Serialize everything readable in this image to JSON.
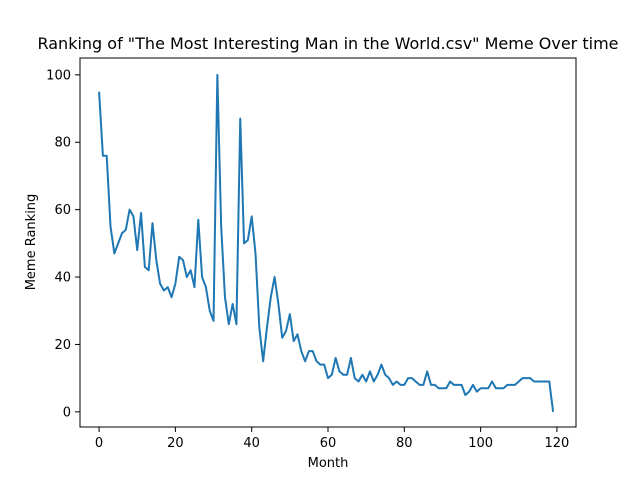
{
  "chart_data": {
    "type": "line",
    "title": "Ranking of \"The Most Interesting Man in the World.csv\" Meme Over time",
    "xlabel": "Month",
    "ylabel": "Meme Ranking",
    "xlim": [
      -5,
      125
    ],
    "ylim": [
      -4.5,
      105
    ],
    "xticks": [
      0,
      20,
      40,
      60,
      80,
      100,
      120
    ],
    "yticks": [
      0,
      20,
      40,
      60,
      80,
      100
    ],
    "grid": false,
    "line_color": "#1f77b4",
    "series": [
      {
        "x": [
          0,
          1,
          2,
          3,
          4,
          5,
          6,
          7,
          8,
          9,
          10,
          11,
          12,
          13,
          14,
          15,
          16,
          17,
          18,
          19,
          20,
          21,
          22,
          23,
          24,
          25,
          26,
          27,
          28,
          29,
          30,
          31,
          32,
          33,
          34,
          35,
          36,
          37,
          38,
          39,
          40,
          41,
          42,
          43,
          44,
          45,
          46,
          47,
          48,
          49,
          50,
          51,
          52,
          53,
          54,
          55,
          56,
          57,
          58,
          59,
          60,
          61,
          62,
          63,
          64,
          65,
          66,
          67,
          68,
          69,
          70,
          71,
          72,
          73,
          74,
          75,
          76,
          77,
          78,
          79,
          80,
          81,
          82,
          83,
          84,
          85,
          86,
          87,
          88,
          89,
          90,
          91,
          92,
          93,
          94,
          95,
          96,
          97,
          98,
          99,
          100,
          101,
          102,
          103,
          104,
          105,
          106,
          107,
          108,
          109,
          110,
          111,
          112,
          113,
          114,
          115,
          116,
          117,
          118,
          119
        ],
        "values": [
          95,
          76,
          76,
          55,
          47,
          50,
          53,
          54,
          60,
          58,
          48,
          59,
          43,
          42,
          56,
          45,
          38,
          36,
          37,
          34,
          38,
          46,
          45,
          40,
          42,
          37,
          57,
          40,
          37,
          30,
          27,
          100,
          55,
          34,
          26,
          32,
          26,
          87,
          50,
          51,
          58,
          47,
          25,
          15,
          25,
          34,
          40,
          32,
          22,
          24,
          29,
          21,
          23,
          18,
          15,
          18,
          18,
          15,
          14,
          14,
          10,
          11,
          16,
          12,
          11,
          11,
          16,
          10,
          9,
          11,
          9,
          12,
          9,
          11,
          14,
          11,
          10,
          8,
          9,
          8,
          8,
          10,
          10,
          9,
          8,
          8,
          12,
          8,
          8,
          7,
          7,
          7,
          9,
          8,
          8,
          8,
          5,
          6,
          8,
          6,
          7,
          7,
          7,
          9,
          7,
          7,
          7,
          8,
          8,
          8,
          9,
          10,
          10,
          10,
          9,
          9,
          9,
          9,
          9,
          0
        ]
      }
    ]
  }
}
